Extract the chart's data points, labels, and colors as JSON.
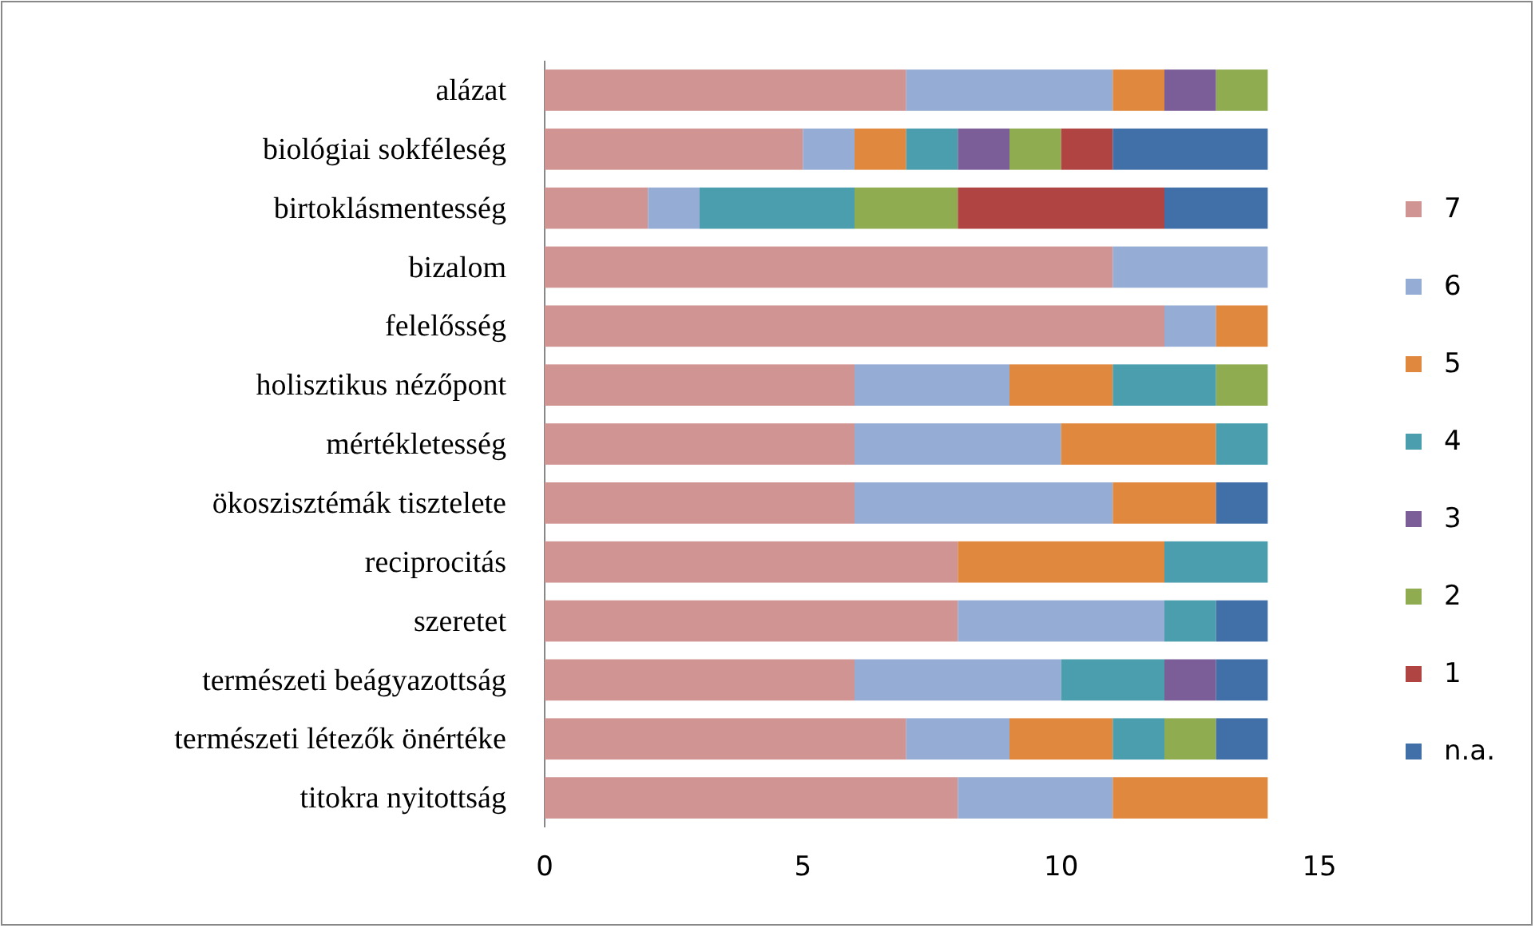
{
  "chart_data": {
    "type": "bar",
    "orientation": "horizontal",
    "stacked": true,
    "legend": "right",
    "grid": false,
    "categories": [
      "alázat",
      "biológiai sokféleség",
      "birtoklásmentesség",
      "bizalom",
      "felelősség",
      "holisztikus nézőpont",
      "mértékletesség",
      "ökoszisztémák tisztelete",
      "reciprocitás",
      "szeretet",
      "természeti beágyazottság",
      "természeti létezők önértéke",
      "titokra nyitottság"
    ],
    "xlim": [
      0,
      15
    ],
    "xticks": [
      0,
      5,
      10,
      15
    ],
    "series": [
      {
        "name": "7",
        "color": "#d09593",
        "values": [
          7,
          5,
          2,
          11,
          12,
          6,
          6,
          6,
          8,
          8,
          6,
          7,
          8
        ]
      },
      {
        "name": "6",
        "color": "#95acd4",
        "values": [
          4,
          1,
          1,
          3,
          1,
          3,
          4,
          5,
          0,
          4,
          4,
          2,
          3
        ]
      },
      {
        "name": "5",
        "color": "#e0883e",
        "values": [
          1,
          1,
          0,
          0,
          1,
          2,
          3,
          2,
          4,
          0,
          0,
          2,
          3
        ]
      },
      {
        "name": "4",
        "color": "#4a9ead",
        "values": [
          0,
          1,
          3,
          0,
          0,
          2,
          1,
          0,
          2,
          1,
          2,
          1,
          0
        ]
      },
      {
        "name": "3",
        "color": "#7b5e98",
        "values": [
          1,
          1,
          0,
          0,
          0,
          0,
          0,
          0,
          0,
          0,
          1,
          0,
          0
        ]
      },
      {
        "name": "2",
        "color": "#8fac50",
        "values": [
          1,
          1,
          2,
          0,
          0,
          1,
          0,
          0,
          0,
          0,
          0,
          1,
          0
        ]
      },
      {
        "name": "1",
        "color": "#b04443",
        "values": [
          0,
          1,
          4,
          0,
          0,
          0,
          0,
          0,
          0,
          0,
          0,
          0,
          0
        ]
      },
      {
        "name": "n.a.",
        "color": "#4170a8",
        "values": [
          0,
          3,
          2,
          0,
          0,
          0,
          0,
          1,
          0,
          1,
          1,
          1,
          0
        ]
      }
    ]
  }
}
